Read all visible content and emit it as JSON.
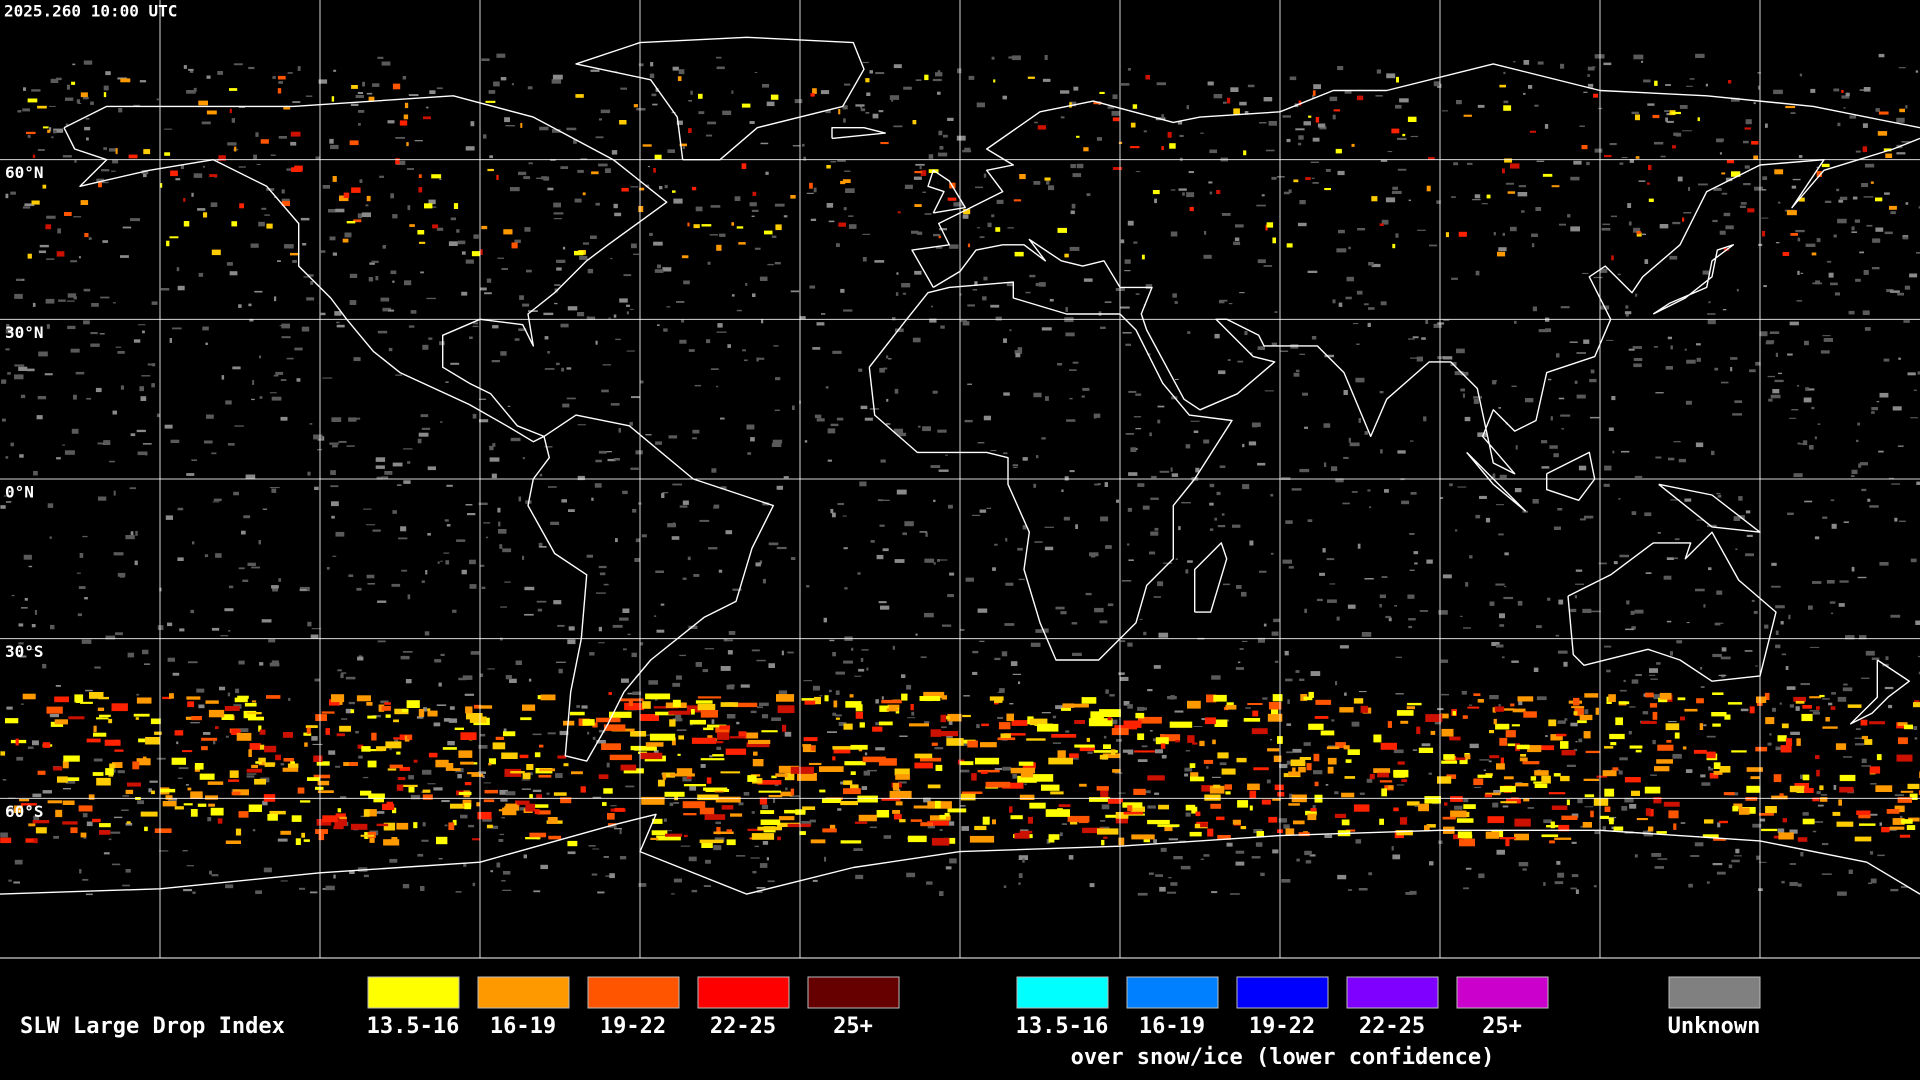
{
  "header": {
    "timestamp": "2025.260 10:00 UTC"
  },
  "map": {
    "latitude_labels": [
      "60°N",
      "30°N",
      "0°N",
      "30°S",
      "60°S"
    ]
  },
  "legend": {
    "title": "SLW Large Drop Index",
    "groups": [
      {
        "items": [
          {
            "label": "13.5-16",
            "color": "#ffff00"
          },
          {
            "label": "16-19",
            "color": "#ff9900"
          },
          {
            "label": "19-22",
            "color": "#ff5500"
          },
          {
            "label": "22-25",
            "color": "#ff0000"
          },
          {
            "label": "25+",
            "color": "#660000"
          }
        ]
      },
      {
        "items": [
          {
            "label": "13.5-16",
            "color": "#00ffff"
          },
          {
            "label": "16-19",
            "color": "#0080ff"
          },
          {
            "label": "19-22",
            "color": "#0000ff"
          },
          {
            "label": "22-25",
            "color": "#8000ff"
          },
          {
            "label": "25+",
            "color": "#cc00cc"
          }
        ],
        "caption": "over snow/ice (lower confidence)"
      },
      {
        "items": [
          {
            "label": "Unknown",
            "color": "#808080"
          }
        ]
      }
    ]
  }
}
